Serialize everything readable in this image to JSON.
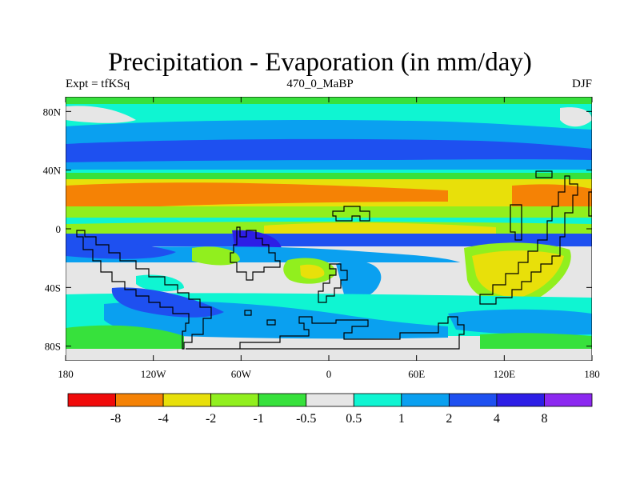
{
  "title": "Precipitation - Evaporation (in mm/day)",
  "subtitle_left": "Expt = tfKSq",
  "subtitle_center": "470_0_MaBP",
  "subtitle_right": "DJF",
  "axes": {
    "x_ticks": [
      {
        "value": -180,
        "label": "180"
      },
      {
        "value": -120,
        "label": "120W"
      },
      {
        "value": -60,
        "label": "60W"
      },
      {
        "value": 0,
        "label": "0"
      },
      {
        "value": 60,
        "label": "60E"
      },
      {
        "value": 120,
        "label": "120E"
      },
      {
        "value": 180,
        "label": "180"
      }
    ],
    "y_ticks": [
      {
        "value": 80,
        "label": "80N"
      },
      {
        "value": 40,
        "label": "40N"
      },
      {
        "value": 0,
        "label": "0"
      },
      {
        "value": -40,
        "label": "40S"
      },
      {
        "value": -80,
        "label": "80S"
      }
    ],
    "lon_range": [
      -180,
      180
    ],
    "lat_range": [
      -90,
      90
    ]
  },
  "colorbar": {
    "colors": [
      "#f00a0a",
      "#f58205",
      "#e8e00a",
      "#91ef1e",
      "#37e13c",
      "#e6e6e6",
      "#0ff5d2",
      "#0aa0f0",
      "#1e50f0",
      "#2d1ee6",
      "#8c28f0"
    ],
    "labels": [
      "-8",
      "-4",
      "-2",
      "-1",
      "-0.5",
      "0.5",
      "1",
      "2",
      "4",
      "8"
    ]
  },
  "chart_data": {
    "type": "heatmap",
    "title": "Precipitation - Evaporation (in mm/day)",
    "levels": [
      -8,
      -4,
      -2,
      -1,
      -0.5,
      0.5,
      1,
      2,
      4,
      8
    ],
    "zonal_bands": [
      {
        "lat": [
          75,
          90
        ],
        "class": "0.5 to 1"
      },
      {
        "lat": [
          62,
          75
        ],
        "class": "1 to 2"
      },
      {
        "lat": [
          48,
          62
        ],
        "class": "2 to 4"
      },
      {
        "lat": [
          38,
          48
        ],
        "class": "1 to 2"
      },
      {
        "lat": [
          31,
          38
        ],
        "class": "-1 to -0.5"
      },
      {
        "lat": [
          15,
          31
        ],
        "class": "-4 to -2"
      },
      {
        "lat": [
          12,
          15
        ],
        "class": "-1 to -0.5"
      },
      {
        "lat": [
          5,
          12
        ],
        "class": "1 to 2"
      },
      {
        "lat": [
          -2,
          5
        ],
        "class": "-2 to -1"
      },
      {
        "lat": [
          -10,
          -2
        ],
        "class": "2 to 4"
      },
      {
        "lat": [
          -28,
          -10
        ],
        "class": "-0.5 to 0.5"
      },
      {
        "lat": [
          -52,
          -28
        ],
        "class": "1 to 2"
      },
      {
        "lat": [
          -70,
          -52
        ],
        "class": "0.5 to 1"
      },
      {
        "lat": [
          -90,
          -70
        ],
        "class": "-0.5 to 0.5"
      }
    ]
  }
}
